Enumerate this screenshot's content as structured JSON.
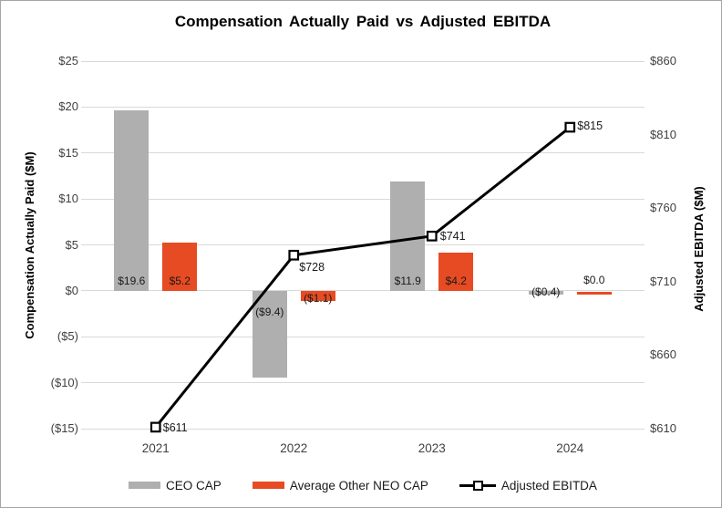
{
  "chart_data": {
    "type": "combo-bar-line",
    "title": "Compensation Actually Paid vs Adjusted EBITDA",
    "categories": [
      "2021",
      "2022",
      "2023",
      "2024"
    ],
    "bar_series": [
      {
        "name": "CEO CAP",
        "color": "#afafaf",
        "axis": "left",
        "values": [
          19.6,
          -9.4,
          11.9,
          -0.4
        ],
        "labels": [
          "$19.6",
          "($9.4)",
          "$11.9",
          "($0.4)"
        ]
      },
      {
        "name": "Average Other NEO CAP",
        "color": "#e64b23",
        "axis": "left",
        "values": [
          5.2,
          -1.1,
          4.2,
          0.0
        ],
        "labels": [
          "$5.2",
          "($1.1)",
          "$4.2",
          "$0.0"
        ]
      }
    ],
    "line_series": {
      "name": "Adjusted EBITDA",
      "color": "#000000",
      "axis": "right",
      "values": [
        611,
        728,
        741,
        815
      ],
      "labels": [
        "$611",
        "$728",
        "$741",
        "$815"
      ],
      "marker": "square-white-fill"
    },
    "left_axis": {
      "label": "Compensation Actually Paid ($M)",
      "ylim": [
        -15,
        25
      ],
      "tick_step": 5,
      "ticks": [
        {
          "label": "$25",
          "value": 25
        },
        {
          "label": "$20",
          "value": 20
        },
        {
          "label": "$15",
          "value": 15
        },
        {
          "label": "$10",
          "value": 10
        },
        {
          "label": "$5",
          "value": 5
        },
        {
          "label": "$0",
          "value": 0
        },
        {
          "label": "($5)",
          "value": -5
        },
        {
          "label": "($10)",
          "value": -10
        },
        {
          "label": "($15)",
          "value": -15
        }
      ]
    },
    "right_axis": {
      "label": "Adjusted EBITDA ($M)",
      "ylim": [
        610,
        860
      ],
      "tick_step": 50,
      "ticks": [
        {
          "label": "$860",
          "value": 860
        },
        {
          "label": "$810",
          "value": 810
        },
        {
          "label": "$760",
          "value": 760
        },
        {
          "label": "$710",
          "value": 710
        },
        {
          "label": "$660",
          "value": 660
        },
        {
          "label": "$610",
          "value": 610
        }
      ]
    },
    "legend": [
      {
        "label": "CEO CAP",
        "type": "bar",
        "color": "#afafaf"
      },
      {
        "label": "Average Other NEO CAP",
        "type": "bar",
        "color": "#e64b23"
      },
      {
        "label": "Adjusted EBITDA",
        "type": "line",
        "color": "#000000"
      }
    ],
    "legend_position": "bottom",
    "grid": {
      "horizontal": true,
      "color": "#d9d9d9"
    }
  }
}
